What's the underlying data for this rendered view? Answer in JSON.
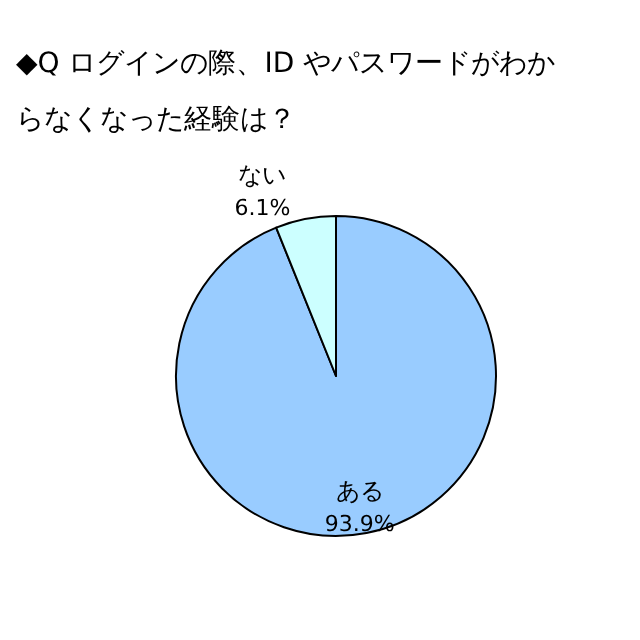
{
  "chart_data": {
    "type": "pie",
    "title": "◆Q ログインの際、ID やパスワードがわからなくなった経験は？",
    "categories": [
      "ある",
      "ない"
    ],
    "values": [
      93.9,
      6.1
    ],
    "value_labels": [
      "93.9%",
      "6.1%"
    ],
    "colors": [
      "#99ccff",
      "#ccffff"
    ]
  }
}
